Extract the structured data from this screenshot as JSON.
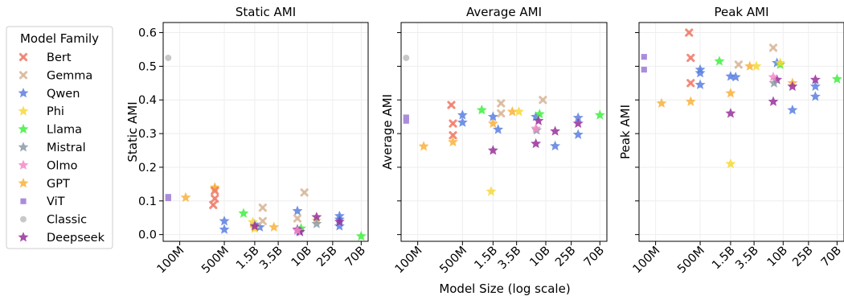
{
  "legend": {
    "title": "Model Family",
    "families": [
      {
        "name": "Bert",
        "color": "#f07f6f",
        "marker": "x"
      },
      {
        "name": "Gemma",
        "color": "#d9b99b",
        "marker": "x"
      },
      {
        "name": "Qwen",
        "color": "#5b7fe0",
        "marker": "star"
      },
      {
        "name": "Phi",
        "color": "#f7d83a",
        "marker": "star"
      },
      {
        "name": "Llama",
        "color": "#3ef03e",
        "marker": "star"
      },
      {
        "name": "Mistral",
        "color": "#8c9aa8",
        "marker": "star"
      },
      {
        "name": "Olmo",
        "color": "#f58ac8",
        "marker": "star"
      },
      {
        "name": "GPT",
        "color": "#f9b23b",
        "marker": "star"
      },
      {
        "name": "ViT",
        "color": "#a98ddc",
        "marker": "square"
      },
      {
        "name": "Classic",
        "color": "#c8c8c8",
        "marker": "circle"
      },
      {
        "name": "Deepseek",
        "color": "#97309a",
        "marker": "star"
      }
    ]
  },
  "xlabel": "Model Size (log scale)",
  "chart_data": [
    {
      "type": "scatter",
      "title": "Static AMI",
      "ylabel": "Static AMI",
      "xscale": "log",
      "xticks": [
        {
          "value": 100000000,
          "label": "100M"
        },
        {
          "value": 500000000,
          "label": "500M"
        },
        {
          "value": 1500000000,
          "label": "1.5B"
        },
        {
          "value": 3500000000,
          "label": "3.5B"
        },
        {
          "value": 10000000000,
          "label": "10B"
        },
        {
          "value": 25000000000,
          "label": "25B"
        },
        {
          "value": 70000000000,
          "label": "70B"
        }
      ],
      "yticks": [
        {
          "value": 0.0,
          "label": "0.0"
        },
        {
          "value": 0.1,
          "label": "0.1"
        },
        {
          "value": 0.2,
          "label": "0.2"
        },
        {
          "value": 0.3,
          "label": "0.3"
        },
        {
          "value": 0.4,
          "label": "0.4"
        },
        {
          "value": 0.5,
          "label": "0.5"
        },
        {
          "value": 0.6,
          "label": "0.6"
        }
      ],
      "ylim": [
        -0.02,
        0.63
      ],
      "series": [
        {
          "name": "Classic",
          "points": [
            [
              66000000,
              0.525
            ]
          ]
        },
        {
          "name": "ViT",
          "points": [
            [
              66000000,
              0.112
            ],
            [
              66000000,
              0.108
            ]
          ]
        },
        {
          "name": "GPT",
          "points": [
            [
              124000000,
              0.11
            ],
            [
              355000000,
              0.14
            ],
            [
              355000000,
              0.135
            ],
            [
              1500000000,
              0.02
            ],
            [
              3000000000,
              0.022
            ]
          ]
        },
        {
          "name": "Bert",
          "points": [
            [
              335000000,
              0.088
            ],
            [
              355000000,
              0.107
            ],
            [
              355000000,
              0.13
            ]
          ]
        },
        {
          "name": "Qwen",
          "points": [
            [
              500000000,
              0.04
            ],
            [
              500000000,
              0.015
            ],
            [
              1500000000,
              0.03
            ],
            [
              1800000000,
              0.022
            ],
            [
              7000000000,
              0.07
            ],
            [
              7500000000,
              0.01
            ],
            [
              32000000000,
              0.055
            ],
            [
              32000000000,
              0.045
            ],
            [
              32000000000,
              0.025
            ]
          ]
        },
        {
          "name": "Llama",
          "points": [
            [
              1000000000,
              0.063
            ],
            [
              8000000000,
              0.018
            ],
            [
              70000000000,
              -0.005
            ]
          ]
        },
        {
          "name": "Phi",
          "points": [
            [
              1400000000,
              0.037
            ],
            [
              1500000000,
              0.018
            ],
            [
              14000000000,
              0.042
            ]
          ]
        },
        {
          "name": "Deepseek",
          "points": [
            [
              1500000000,
              0.025
            ],
            [
              7000000000,
              0.015
            ],
            [
              7700000000,
              0.008
            ],
            [
              14000000000,
              0.052
            ],
            [
              32000000000,
              0.038
            ]
          ]
        },
        {
          "name": "Gemma",
          "points": [
            [
              2000000000,
              0.08
            ],
            [
              2000000000,
              0.04
            ],
            [
              7000000000,
              0.048
            ],
            [
              9000000000,
              0.125
            ]
          ]
        },
        {
          "name": "Mistral",
          "points": [
            [
              14000000000,
              0.032
            ]
          ]
        },
        {
          "name": "Olmo",
          "points": [
            [
              7000000000,
              0.012
            ]
          ]
        }
      ]
    },
    {
      "type": "scatter",
      "title": "Average AMI",
      "ylabel": "Average AMI",
      "xscale": "log",
      "xticks": [
        {
          "value": 100000000,
          "label": "100M"
        },
        {
          "value": 500000000,
          "label": "500M"
        },
        {
          "value": 1500000000,
          "label": "1.5B"
        },
        {
          "value": 3500000000,
          "label": "3.5B"
        },
        {
          "value": 10000000000,
          "label": "10B"
        },
        {
          "value": 25000000000,
          "label": "25B"
        },
        {
          "value": 70000000000,
          "label": "70B"
        }
      ],
      "ylim": [
        -0.02,
        0.63
      ],
      "series": [
        {
          "name": "Classic",
          "points": [
            [
              66000000,
              0.525
            ]
          ]
        },
        {
          "name": "ViT",
          "points": [
            [
              66000000,
              0.348
            ],
            [
              66000000,
              0.338
            ]
          ]
        },
        {
          "name": "GPT",
          "points": [
            [
              124000000,
              0.262
            ],
            [
              355000000,
              0.275
            ],
            [
              1500000000,
              0.33
            ],
            [
              3000000000,
              0.365
            ]
          ]
        },
        {
          "name": "Bert",
          "points": [
            [
              335000000,
              0.385
            ],
            [
              355000000,
              0.33
            ],
            [
              355000000,
              0.295
            ]
          ]
        },
        {
          "name": "Qwen",
          "points": [
            [
              500000000,
              0.355
            ],
            [
              500000000,
              0.333
            ],
            [
              1500000000,
              0.35
            ],
            [
              1800000000,
              0.312
            ],
            [
              7000000000,
              0.35
            ],
            [
              14000000000,
              0.263
            ],
            [
              32000000000,
              0.347
            ],
            [
              32000000000,
              0.297
            ]
          ]
        },
        {
          "name": "Llama",
          "points": [
            [
              1000000000,
              0.37
            ],
            [
              8000000000,
              0.358
            ],
            [
              70000000000,
              0.355
            ]
          ]
        },
        {
          "name": "Phi",
          "points": [
            [
              1400000000,
              0.128
            ],
            [
              3800000000,
              0.365
            ]
          ]
        },
        {
          "name": "Deepseek",
          "points": [
            [
              1500000000,
              0.25
            ],
            [
              7000000000,
              0.27
            ],
            [
              7700000000,
              0.338
            ],
            [
              14000000000,
              0.307
            ],
            [
              32000000000,
              0.33
            ]
          ]
        },
        {
          "name": "Gemma",
          "points": [
            [
              2000000000,
              0.39
            ],
            [
              2000000000,
              0.36
            ],
            [
              9000000000,
              0.4
            ]
          ]
        },
        {
          "name": "Mistral",
          "points": [
            [
              7200000000,
              0.31
            ]
          ]
        },
        {
          "name": "Olmo",
          "points": [
            [
              7000000000,
              0.315
            ]
          ]
        }
      ]
    },
    {
      "type": "scatter",
      "title": "Peak AMI",
      "ylabel": "Peak AMI",
      "xscale": "log",
      "xticks": [
        {
          "value": 100000000,
          "label": "100M"
        },
        {
          "value": 500000000,
          "label": "500M"
        },
        {
          "value": 1500000000,
          "label": "1.5B"
        },
        {
          "value": 3500000000,
          "label": "3.5B"
        },
        {
          "value": 10000000000,
          "label": "10B"
        },
        {
          "value": 25000000000,
          "label": "25B"
        },
        {
          "value": 70000000000,
          "label": "70B"
        }
      ],
      "ylim": [
        -0.02,
        0.63
      ],
      "series": [
        {
          "name": "ViT",
          "points": [
            [
              66000000,
              0.528
            ],
            [
              66000000,
              0.49
            ]
          ]
        },
        {
          "name": "GPT",
          "points": [
            [
              124000000,
              0.39
            ],
            [
              355000000,
              0.395
            ],
            [
              1500000000,
              0.42
            ],
            [
              3000000000,
              0.5
            ],
            [
              14000000000,
              0.45
            ]
          ]
        },
        {
          "name": "Bert",
          "points": [
            [
              335000000,
              0.6
            ],
            [
              355000000,
              0.525
            ],
            [
              355000000,
              0.45
            ]
          ]
        },
        {
          "name": "Qwen",
          "points": [
            [
              500000000,
              0.49
            ],
            [
              500000000,
              0.48
            ],
            [
              500000000,
              0.445
            ],
            [
              1500000000,
              0.47
            ],
            [
              1800000000,
              0.468
            ],
            [
              8000000000,
              0.51
            ],
            [
              14000000000,
              0.37
            ],
            [
              32000000000,
              0.44
            ],
            [
              32000000000,
              0.41
            ]
          ]
        },
        {
          "name": "Llama",
          "points": [
            [
              1000000000,
              0.515
            ],
            [
              9000000000,
              0.505
            ],
            [
              70000000000,
              0.462
            ]
          ]
        },
        {
          "name": "Phi",
          "points": [
            [
              1500000000,
              0.21
            ],
            [
              3800000000,
              0.5
            ],
            [
              9000000000,
              0.51
            ]
          ]
        },
        {
          "name": "Deepseek",
          "points": [
            [
              1500000000,
              0.36
            ],
            [
              7000000000,
              0.395
            ],
            [
              8000000000,
              0.46
            ],
            [
              14000000000,
              0.44
            ],
            [
              32000000000,
              0.46
            ]
          ]
        },
        {
          "name": "Gemma",
          "points": [
            [
              2000000000,
              0.505
            ],
            [
              7000000000,
              0.555
            ]
          ]
        },
        {
          "name": "Mistral",
          "points": [
            [
              7200000000,
              0.45
            ]
          ]
        },
        {
          "name": "Olmo",
          "points": [
            [
              7000000000,
              0.468
            ]
          ]
        }
      ]
    }
  ]
}
